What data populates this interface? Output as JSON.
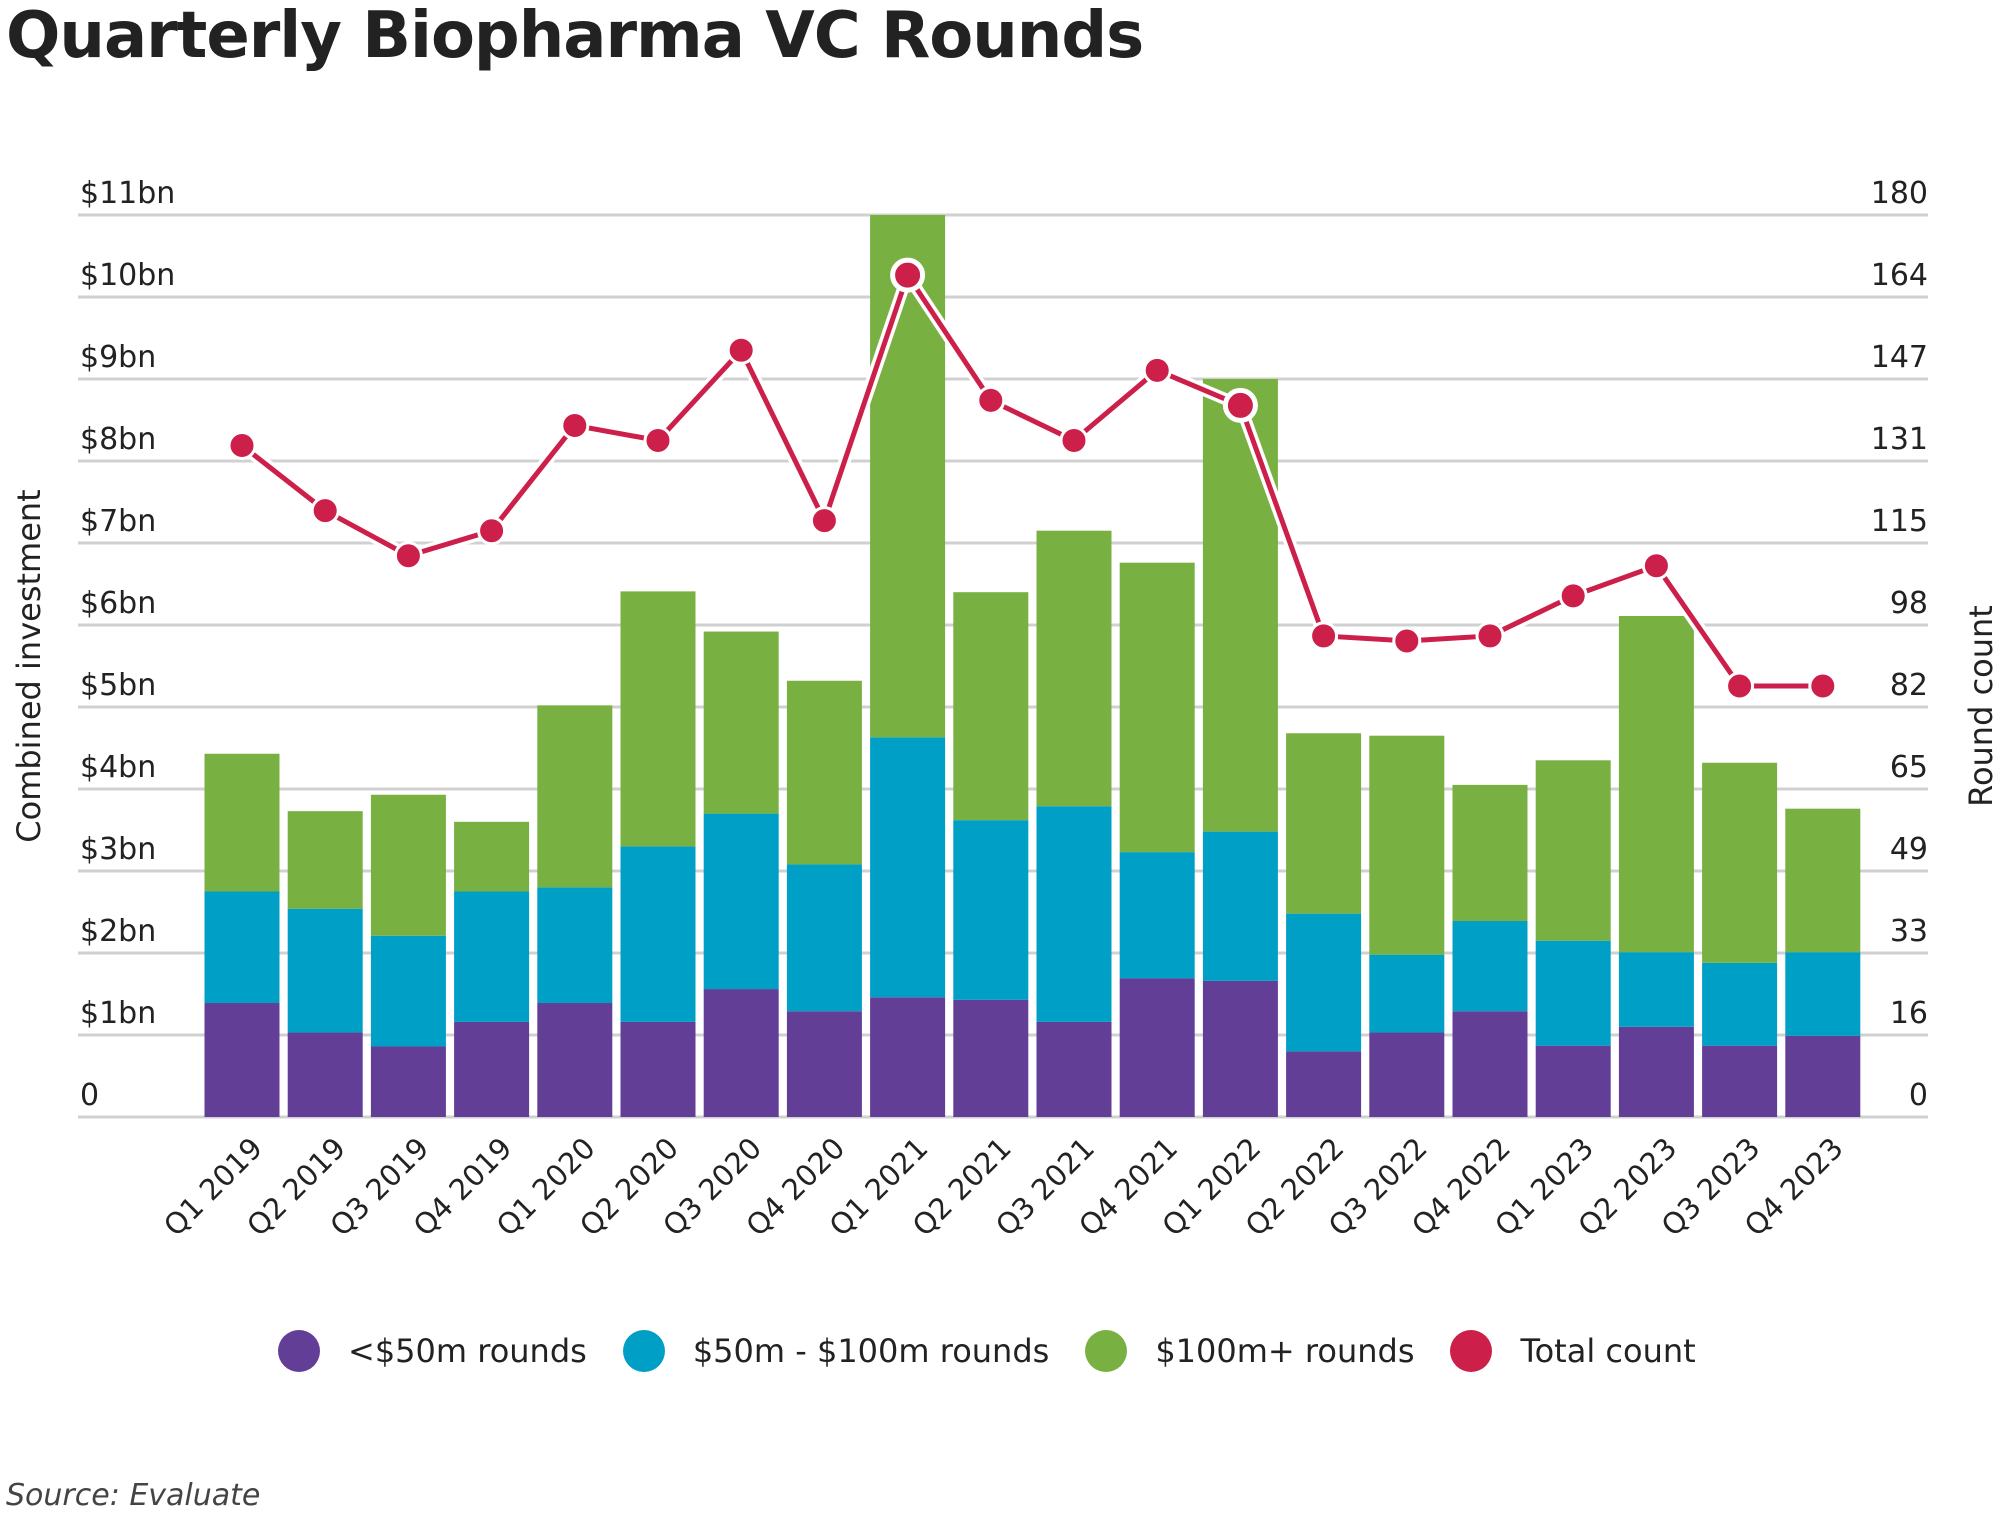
{
  "title": "Quarterly Biopharma VC Rounds",
  "source": "Source: Evaluate",
  "colors": {
    "under50": "#633e97",
    "mid": "#009fc6",
    "over100": "#78b042",
    "count": "#cc1f4a",
    "grid": "#d0d0d0"
  },
  "chart_data": {
    "type": "bar",
    "stacked": true,
    "title": "Quarterly Biopharma VC Rounds",
    "xlabel": "",
    "ylabel": "Combined investment",
    "y2label": "Round count",
    "ylim": [
      0,
      11
    ],
    "y2lim": [
      0,
      180
    ],
    "grid": true,
    "legend_position": "bottom",
    "categories": [
      "Q1 2019",
      "Q2 2019",
      "Q3 2019",
      "Q4 2019",
      "Q1 2020",
      "Q2 2020",
      "Q3 2020",
      "Q4 2020",
      "Q1 2021",
      "Q2 2021",
      "Q3 2021",
      "Q4 2021",
      "Q1 2022",
      "Q2 2022",
      "Q3 2022",
      "Q4 2022",
      "Q1 2023",
      "Q2 2023",
      "Q3 2023",
      "Q4 2023"
    ],
    "yticks": [
      "0",
      "$1bn",
      "$2bn",
      "$3bn",
      "$4bn",
      "$5bn",
      "$6bn",
      "$7bn",
      "$8bn",
      "$9bn",
      "$10bn",
      "$11bn"
    ],
    "y2ticks": [
      "0",
      "16",
      "33",
      "49",
      "65",
      "82",
      "98",
      "115",
      "131",
      "147",
      "164",
      "180"
    ],
    "series": [
      {
        "name": "<$50m rounds",
        "type": "bar",
        "axis": "left",
        "unit": "$bn",
        "values": [
          1.39,
          1.03,
          0.86,
          1.16,
          1.39,
          1.16,
          1.56,
          1.29,
          1.46,
          1.43,
          1.16,
          1.69,
          1.66,
          0.8,
          1.03,
          1.29,
          0.87,
          1.1,
          0.87,
          0.99
        ]
      },
      {
        "name": "$50m - $100m rounds",
        "type": "bar",
        "axis": "left",
        "unit": "$bn",
        "values": [
          1.36,
          1.51,
          1.35,
          1.59,
          1.41,
          2.14,
          2.14,
          1.79,
          3.17,
          2.19,
          2.63,
          1.54,
          1.82,
          1.68,
          0.95,
          1.1,
          1.28,
          0.91,
          1.01,
          1.02
        ]
      },
      {
        "name": "$100m+ rounds",
        "type": "bar",
        "axis": "left",
        "unit": "$bn",
        "values": [
          1.68,
          1.19,
          1.72,
          0.85,
          2.22,
          3.11,
          2.22,
          2.24,
          6.37,
          2.78,
          3.36,
          3.53,
          5.52,
          2.2,
          2.67,
          1.66,
          2.2,
          4.1,
          2.44,
          1.75
        ]
      },
      {
        "name": "Total count",
        "type": "line",
        "axis": "right",
        "values": [
          134,
          121,
          112,
          117,
          138,
          135,
          153,
          119,
          168,
          143,
          135,
          149,
          142,
          96,
          95,
          96,
          104,
          110,
          86,
          86
        ],
        "highlighted": [
          "Q1 2021",
          "Q1 2022"
        ]
      }
    ]
  }
}
